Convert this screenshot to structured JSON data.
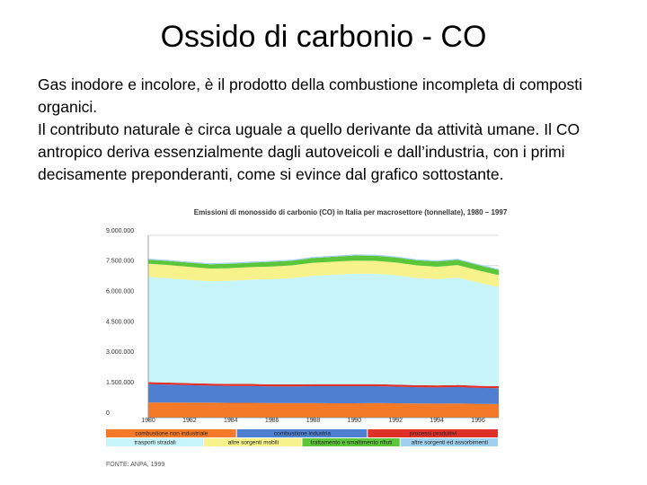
{
  "slide": {
    "title": "Ossido di carbonio - CO",
    "paragraphs": [
      "Gas inodore e incolore, è il prodotto della combustione incompleta di composti organici.",
      "Il contributo naturale è circa uguale a quello derivante da attività umane. Il CO antropico deriva essenzialmente dagli autoveicoli e dall’industria, con i primi decisamente preponderanti, come si evince dal grafico sottostante."
    ]
  },
  "chart_data": {
    "type": "stacked-area",
    "title": "Emissioni di monossido di carbonio (CO) in Italia per macrosettore (tonnellate), 1980 – 1997",
    "source": "FONTE: ANPA, 1999",
    "x": [
      1980,
      1981,
      1982,
      1983,
      1984,
      1985,
      1986,
      1987,
      1988,
      1989,
      1990,
      1991,
      1992,
      1993,
      1994,
      1995,
      1996,
      1997
    ],
    "xlim": [
      1980,
      1997
    ],
    "xticks": [
      1980,
      1982,
      1984,
      1986,
      1988,
      1990,
      1992,
      1994,
      1996
    ],
    "ylim": [
      0,
      9000000
    ],
    "yticks": [
      0,
      {
        "value": 1500000,
        "label": "1.500.000"
      },
      {
        "value": 3000000,
        "label": "3.000.000"
      },
      {
        "value": 4500000,
        "label": "4.500.000"
      },
      {
        "value": 6000000,
        "label": "6.000.000"
      },
      {
        "value": 7500000,
        "label": "7.500.000"
      },
      {
        "value": 9000000,
        "label": "9.000.000"
      }
    ],
    "grid": true,
    "series": [
      {
        "name": "combustione non industriale",
        "color": "#f47a2a",
        "values": [
          750000,
          750000,
          740000,
          740000,
          730000,
          730000,
          720000,
          720000,
          720000,
          710000,
          710000,
          720000,
          710000,
          700000,
          690000,
          700000,
          680000,
          670000
        ]
      },
      {
        "name": "combustione industria",
        "color": "#4f7fd0",
        "values": [
          900000,
          880000,
          860000,
          840000,
          830000,
          830000,
          820000,
          820000,
          830000,
          840000,
          840000,
          830000,
          820000,
          800000,
          800000,
          810000,
          790000,
          780000
        ]
      },
      {
        "name": "processi produttivi",
        "color": "#e0302a",
        "values": [
          100000,
          100000,
          100000,
          100000,
          100000,
          100000,
          100000,
          100000,
          100000,
          100000,
          100000,
          100000,
          100000,
          100000,
          100000,
          100000,
          100000,
          100000
        ]
      },
      {
        "name": "trasporti stradali",
        "color": "#c8f4fb",
        "values": [
          5200000,
          5150000,
          5100000,
          5050000,
          5100000,
          5150000,
          5200000,
          5250000,
          5350000,
          5400000,
          5450000,
          5450000,
          5400000,
          5300000,
          5250000,
          5300000,
          5100000,
          4900000
        ]
      },
      {
        "name": "altre sorgenti mobili",
        "color": "#f8f28c",
        "values": [
          650000,
          650000,
          640000,
          630000,
          620000,
          620000,
          620000,
          630000,
          640000,
          650000,
          650000,
          640000,
          630000,
          620000,
          610000,
          620000,
          600000,
          580000
        ]
      },
      {
        "name": "trattamento e smaltimento rifiuti",
        "color": "#5cc63a",
        "values": [
          200000,
          200000,
          210000,
          210000,
          220000,
          220000,
          230000,
          230000,
          240000,
          240000,
          250000,
          250000,
          250000,
          250000,
          260000,
          260000,
          260000,
          260000
        ]
      },
      {
        "name": "altre sorgenti ed assorbimenti",
        "color": "#9fd0f0",
        "values": [
          50000,
          50000,
          50000,
          50000,
          50000,
          50000,
          50000,
          50000,
          50000,
          50000,
          50000,
          50000,
          50000,
          50000,
          50000,
          50000,
          50000,
          50000
        ]
      }
    ]
  }
}
